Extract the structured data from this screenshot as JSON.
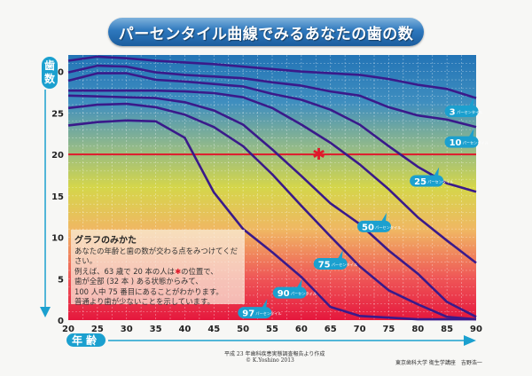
{
  "title": "パーセンタイル曲線でみるあなたの歯の数",
  "y_axis_label": [
    "歯",
    "数"
  ],
  "x_axis_label": "年齢",
  "howto": {
    "heading": "グラフのみかた",
    "body_pre": "あなたの年齢と歯の数が交わる点をみつけてください。\n例えば、63 歳で 20 本の人は",
    "star": "✱",
    "body_post": "の位置で、\n歯が全部 (32 本 ) ある状態からみて、\n100 人中 75 番目にあることがわかります。\n普通より歯が少ないことを示しています。"
  },
  "footer": {
    "source": "平成 23 年歯科疾患実態調査報告より作成",
    "copyright": "© K.Yoshino 2013",
    "author": "東京歯科大学 衛生学講座　吉野浩一"
  },
  "colors": {
    "curve": "#3a1a8a",
    "reference_line": "#e0192b",
    "label_bubble": "#1ba0cf",
    "gradient": [
      "#2374b6",
      "#4f9cbd",
      "#a9c47a",
      "#dedb3f",
      "#f2a862",
      "#ef4b53",
      "#e51a3c"
    ]
  },
  "chart_data": {
    "type": "line",
    "title": "パーセンタイル曲線でみるあなたの歯の数",
    "xlabel": "年齢",
    "ylabel": "歯数",
    "xlim": [
      20,
      90
    ],
    "ylim": [
      0,
      32
    ],
    "x_ticks": [
      20,
      25,
      30,
      35,
      40,
      45,
      50,
      55,
      60,
      65,
      70,
      75,
      80,
      85,
      90
    ],
    "y_ticks": [
      0,
      5,
      10,
      15,
      20,
      25,
      30
    ],
    "grid": true,
    "x": [
      20,
      25,
      30,
      35,
      40,
      45,
      50,
      55,
      60,
      65,
      70,
      75,
      80,
      85,
      90
    ],
    "series": [
      {
        "name": "3",
        "suffix": "パーセンタイル",
        "values": [
          31.3,
          31.8,
          31.6,
          31.3,
          31.1,
          30.9,
          30.6,
          30.3,
          30.0,
          29.8,
          29.6,
          29.1,
          28.4,
          27.9,
          26.8
        ],
        "label_at": [
          87.5,
          25.2
        ]
      },
      {
        "name": "10",
        "suffix": "パーセンタイル",
        "values": [
          29.9,
          30.7,
          30.6,
          29.9,
          29.6,
          29.4,
          29.2,
          28.7,
          28.3,
          27.6,
          27.1,
          25.7,
          24.7,
          24.2,
          23.3
        ],
        "label_at": [
          87.5,
          21.5
        ]
      },
      {
        "name": "25",
        "suffix": "パーセンタイル",
        "values": [
          28.9,
          29.8,
          29.8,
          29.0,
          28.8,
          28.5,
          28.2,
          27.3,
          26.6,
          25.4,
          23.6,
          21.0,
          18.5,
          16.5,
          15.5
        ],
        "label_at": [
          81.5,
          16.8
        ]
      },
      {
        "name": "50",
        "suffix": "パーセンタイル",
        "values": [
          27.7,
          27.7,
          27.7,
          27.7,
          27.6,
          27.4,
          26.9,
          25.6,
          23.6,
          21.4,
          18.8,
          15.8,
          12.4,
          9.6,
          6.9
        ],
        "label_at": [
          72.5,
          11.3
        ]
      },
      {
        "name": "75",
        "suffix": "パーセンタイル",
        "values": [
          27.1,
          27.0,
          26.9,
          26.8,
          26.3,
          25.3,
          23.6,
          20.6,
          17.4,
          14.1,
          11.6,
          8.4,
          5.6,
          2.2,
          0.4
        ],
        "label_at": [
          65,
          6.8
        ]
      },
      {
        "name": "90",
        "suffix": "パーセンタイル",
        "values": [
          25.6,
          26.0,
          26.1,
          25.7,
          24.8,
          23.3,
          21.0,
          17.6,
          13.8,
          10.1,
          6.5,
          3.6,
          1.9,
          0.4,
          0.1
        ],
        "label_at": [
          58,
          3.3
        ]
      },
      {
        "name": "97",
        "suffix": "パーセンタイル",
        "values": [
          23.5,
          23.9,
          24.1,
          24.0,
          22.0,
          15.4,
          11.0,
          8.2,
          5.2,
          1.6,
          0.5,
          0.3,
          0.1,
          0.1,
          0.1
        ],
        "label_at": [
          52,
          0.9
        ]
      }
    ],
    "reference_line": {
      "y": 20
    },
    "marker": {
      "x": 63,
      "y": 20,
      "symbol": "✱"
    }
  }
}
